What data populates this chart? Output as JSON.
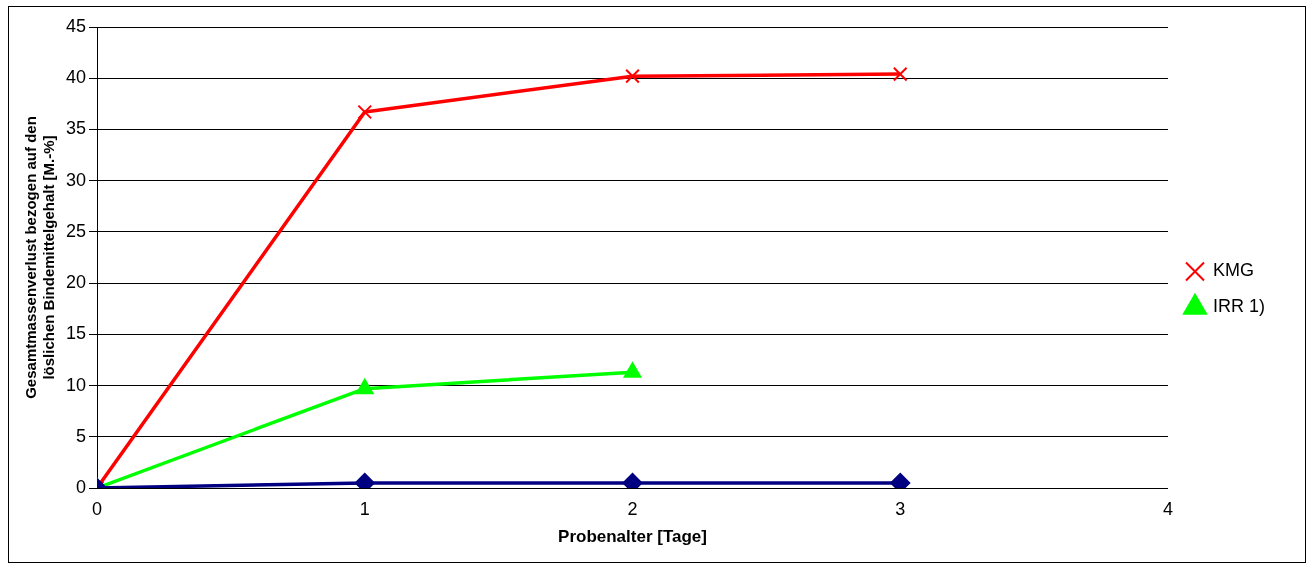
{
  "chart_data": {
    "type": "line",
    "xlabel": "Probenalter [Tage]",
    "ylabel": "Gesamtmassenverlust bezogen auf den löslichen Bindemittelgehalt [M.-%]",
    "xlim": [
      0,
      4
    ],
    "xticks": [
      0,
      1,
      2,
      3,
      4
    ],
    "ylim": [
      0,
      45
    ],
    "yticks": [
      0,
      5,
      10,
      15,
      20,
      25,
      30,
      35,
      40,
      45
    ],
    "grid": "y",
    "legend": "right",
    "series": [
      {
        "color": "#000080",
        "marker": "diamond",
        "x": [
          0,
          1,
          2,
          3
        ],
        "values": [
          0,
          0.5,
          0.5,
          0.5
        ]
      },
      {
        "name": "KMG",
        "color": "#ff0000",
        "marker": "cross",
        "x": [
          0,
          1,
          2,
          3
        ],
        "values": [
          0,
          36.7,
          40.2,
          40.4
        ]
      },
      {
        "name": "IRR 1)",
        "color": "#00ff00",
        "marker": "triangle",
        "x": [
          0,
          1,
          2
        ],
        "values": [
          0,
          9.7,
          11.3
        ]
      }
    ]
  }
}
